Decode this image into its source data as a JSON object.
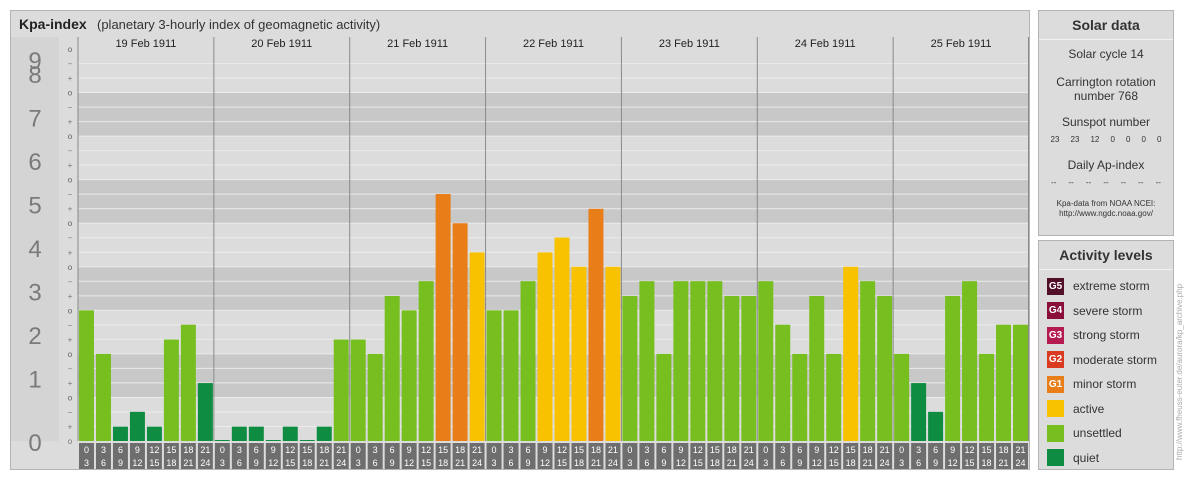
{
  "header": {
    "title": "Kpa-index",
    "subtitle": "(planetary 3-hourly index of geomagnetic activity)"
  },
  "chart_data": {
    "type": "bar",
    "title": "Kpa-index",
    "subtitle": "(planetary 3-hourly index of geomagnetic activity)",
    "ylim": [
      0,
      9
    ],
    "y_ticks": [
      "0",
      "1",
      "2",
      "3",
      "4",
      "5",
      "6",
      "7",
      "8",
      "9"
    ],
    "minor_ticks": [
      "o",
      "+",
      "−",
      "o"
    ],
    "days": [
      "19 Feb 1911",
      "20 Feb 1911",
      "21 Feb 1911",
      "22 Feb 1911",
      "23 Feb 1911",
      "24 Feb 1911",
      "25 Feb 1911"
    ],
    "interval_top": [
      "0",
      "3",
      "6",
      "9",
      "12",
      "15",
      "18",
      "21"
    ],
    "interval_bottom": [
      "3",
      "6",
      "9",
      "12",
      "15",
      "18",
      "21",
      "24"
    ],
    "values": [
      [
        3,
        2,
        0.33,
        0.67,
        0.33,
        2.33,
        2.67,
        1.33
      ],
      [
        0,
        0.33,
        0.33,
        0,
        0.33,
        0,
        0.33,
        2.33
      ],
      [
        2.33,
        2,
        3.33,
        3,
        3.67,
        5.67,
        5,
        4.33
      ],
      [
        3,
        3,
        3.67,
        4.33,
        4.67,
        4,
        5.33,
        4
      ],
      [
        3.33,
        3.67,
        2,
        3.67,
        3.67,
        3.67,
        3.33,
        3.33
      ],
      [
        3.67,
        2.67,
        2,
        3.33,
        2,
        4,
        3.67,
        3.33
      ],
      [
        2,
        1.33,
        0.67,
        3.33,
        3.67,
        2,
        2.67,
        2.67
      ]
    ],
    "colors": {
      "quiet": "#0e8c42",
      "unsettled": "#77bf1f",
      "active": "#f8c200",
      "G1": "#e97e18",
      "G2": "#da3a20",
      "G3": "#b51b50",
      "G4": "#8a0d3a",
      "G5": "#520f28"
    }
  },
  "solar": {
    "title": "Solar data",
    "cycle": "Solar cycle 14",
    "carrington_line1": "Carrington rotation",
    "carrington_line2": "number 768",
    "sunspot_title": "Sunspot number",
    "sunspots": [
      "23",
      "23",
      "12",
      "0",
      "0",
      "0",
      "0"
    ],
    "ap_title": "Daily Ap-index",
    "ap_values": [
      "--",
      "--",
      "--",
      "--",
      "--",
      "--",
      "--"
    ],
    "source_line1": "Kpa-data from NOAA NCEI:",
    "source_line2": "http://www.ngdc.noaa.gov/"
  },
  "levels": {
    "title": "Activity levels",
    "items": [
      {
        "badge": "G5",
        "label": "extreme storm",
        "color": "#520f28"
      },
      {
        "badge": "G4",
        "label": "severe storm",
        "color": "#8a0d3a"
      },
      {
        "badge": "G3",
        "label": "strong storm",
        "color": "#b51b50"
      },
      {
        "badge": "G2",
        "label": "moderate storm",
        "color": "#da3a20"
      },
      {
        "badge": "G1",
        "label": "minor storm",
        "color": "#e97e18"
      },
      {
        "badge": "",
        "label": "active",
        "color": "#f8c200"
      },
      {
        "badge": "",
        "label": "unsettled",
        "color": "#77bf1f"
      },
      {
        "badge": "",
        "label": "quiet",
        "color": "#0e8c42"
      }
    ]
  },
  "credit": "http://www.fheuss-euter.de/aurora/kp_archive.php"
}
